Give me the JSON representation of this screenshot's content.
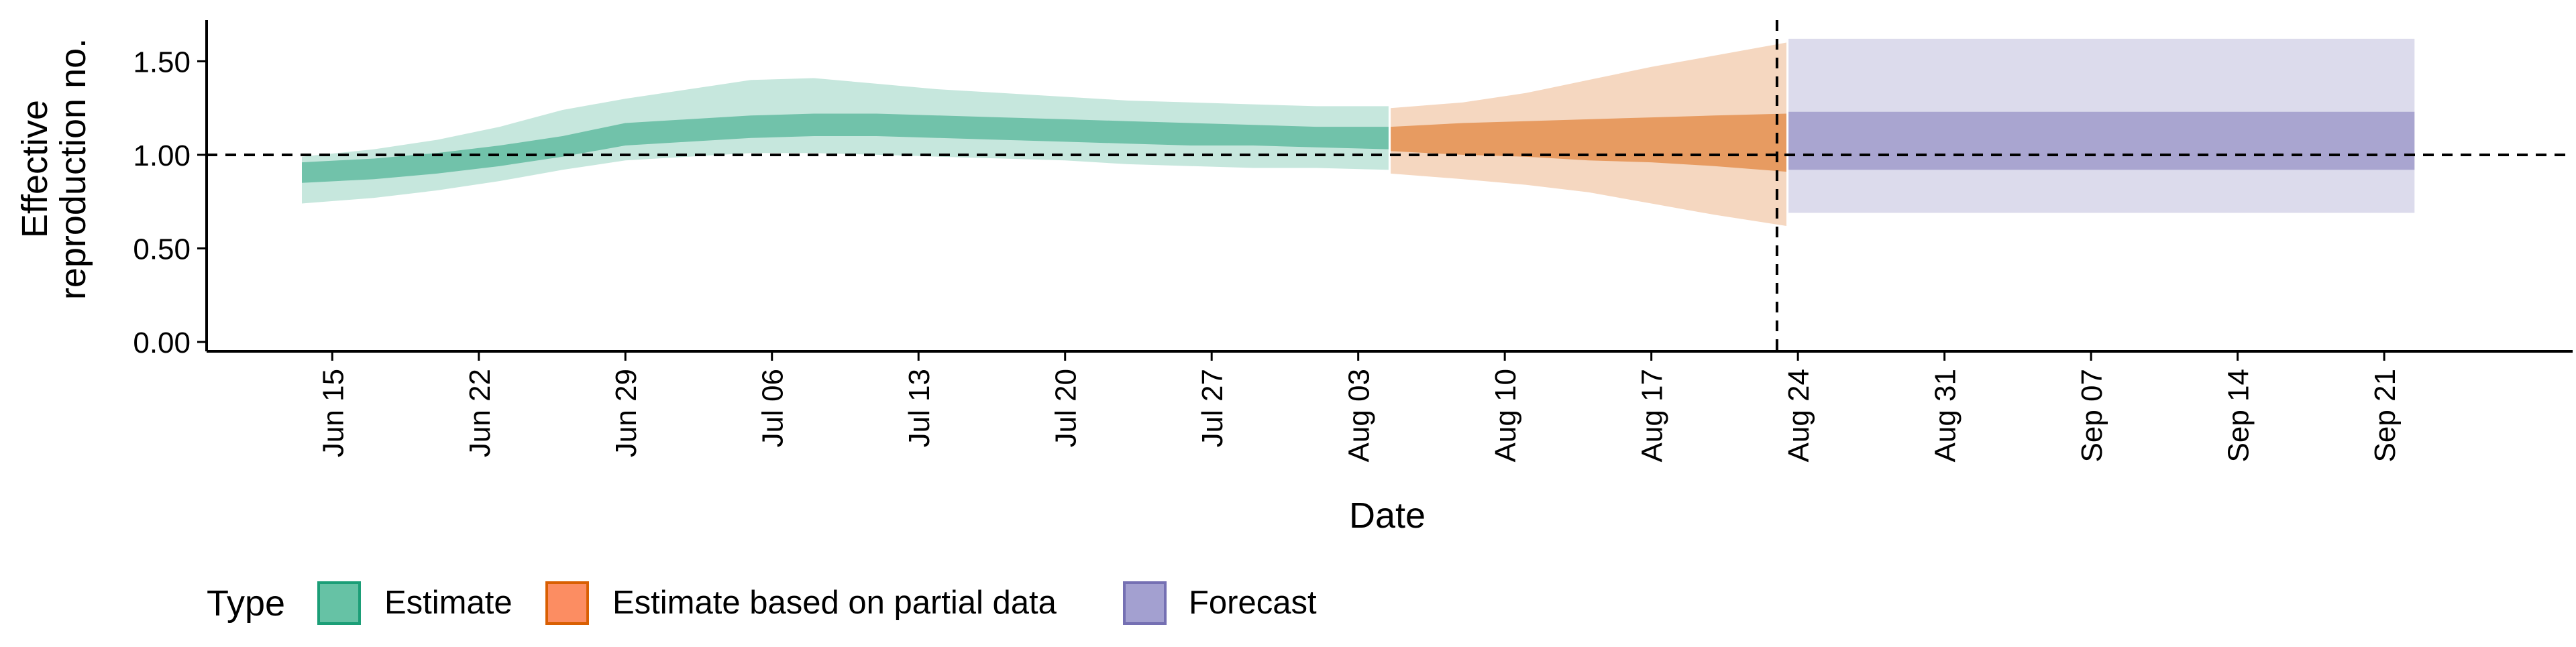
{
  "chart_data": {
    "type": "area",
    "title": "",
    "xlabel": "Date",
    "ylabel": [
      "Effective",
      "reproduction no."
    ],
    "ylim": [
      -0.05,
      1.72
    ],
    "xlim": [
      "2021-06-09",
      "2021-09-30"
    ],
    "yticks": [
      0.0,
      0.5,
      1.0,
      1.5
    ],
    "ytick_labels": [
      "0.00",
      "0.50",
      "1.00",
      "1.50"
    ],
    "xticks": [
      "2021-06-15",
      "2021-06-22",
      "2021-06-29",
      "2021-07-06",
      "2021-07-13",
      "2021-07-20",
      "2021-07-27",
      "2021-08-03",
      "2021-08-10",
      "2021-08-17",
      "2021-08-24",
      "2021-08-31",
      "2021-09-07",
      "2021-09-14",
      "2021-09-21"
    ],
    "xtick_labels": [
      "Jun 15",
      "Jun 22",
      "Jun 29",
      "Jul 06",
      "Jul 13",
      "Jul 20",
      "Jul 27",
      "Aug 03",
      "Aug 10",
      "Aug 17",
      "Aug 24",
      "Aug 31",
      "Sep 07",
      "Sep 14",
      "Sep 21"
    ],
    "reference_hline": 1.0,
    "reference_vline": "2021-08-23",
    "grid": false,
    "legend": {
      "title": "Type",
      "placement": "bottom-left",
      "entries": [
        {
          "label": "Estimate",
          "fill": "#66c2a5",
          "border": "#1b9e77"
        },
        {
          "label": "Estimate based on partial data",
          "fill": "#fc8d62",
          "border": "#d95f02"
        },
        {
          "label": "Forecast",
          "fill": "#a3a0d0",
          "border": "#7570b3"
        }
      ]
    },
    "series": [
      {
        "name": "Estimate",
        "color": "#1b9e77",
        "x": [
          "2021-06-14",
          "2021-06-17",
          "2021-06-20",
          "2021-06-23",
          "2021-06-26",
          "2021-06-29",
          "2021-07-02",
          "2021-07-05",
          "2021-07-08",
          "2021-07-11",
          "2021-07-14",
          "2021-07-17",
          "2021-07-20",
          "2021-07-23",
          "2021-07-26",
          "2021-07-29",
          "2021-08-01",
          "2021-08-04"
        ],
        "lower90": [
          0.74,
          0.77,
          0.81,
          0.86,
          0.92,
          0.97,
          0.99,
          1.01,
          1.01,
          1.0,
          0.99,
          0.98,
          0.97,
          0.95,
          0.94,
          0.93,
          0.93,
          0.92
        ],
        "lower50": [
          0.85,
          0.87,
          0.9,
          0.94,
          0.99,
          1.05,
          1.07,
          1.09,
          1.1,
          1.1,
          1.09,
          1.08,
          1.07,
          1.06,
          1.05,
          1.05,
          1.04,
          1.03
        ],
        "upper50": [
          0.96,
          0.98,
          1.01,
          1.05,
          1.1,
          1.17,
          1.19,
          1.21,
          1.22,
          1.22,
          1.21,
          1.2,
          1.19,
          1.18,
          1.17,
          1.16,
          1.15,
          1.15
        ],
        "upper90": [
          0.99,
          1.03,
          1.08,
          1.15,
          1.24,
          1.3,
          1.35,
          1.4,
          1.41,
          1.38,
          1.35,
          1.33,
          1.31,
          1.29,
          1.28,
          1.27,
          1.26,
          1.26
        ]
      },
      {
        "name": "Estimate based on partial data",
        "color": "#d95f02",
        "x": [
          "2021-08-05",
          "2021-08-08",
          "2021-08-11",
          "2021-08-14",
          "2021-08-17",
          "2021-08-20",
          "2021-08-23"
        ],
        "lower90": [
          0.9,
          0.87,
          0.84,
          0.8,
          0.74,
          0.68,
          0.62
        ],
        "lower50": [
          1.02,
          1.0,
          0.99,
          0.97,
          0.96,
          0.94,
          0.91
        ],
        "upper50": [
          1.15,
          1.17,
          1.18,
          1.19,
          1.2,
          1.21,
          1.22
        ],
        "upper90": [
          1.25,
          1.28,
          1.33,
          1.4,
          1.47,
          1.53,
          1.6
        ]
      },
      {
        "name": "Forecast",
        "color": "#7570b3",
        "x": [
          "2021-08-24",
          "2021-09-22"
        ],
        "lower90": [
          0.69,
          0.69
        ],
        "lower50": [
          0.92,
          0.92
        ],
        "upper50": [
          1.23,
          1.23
        ],
        "upper90": [
          1.62,
          1.62
        ]
      }
    ]
  }
}
